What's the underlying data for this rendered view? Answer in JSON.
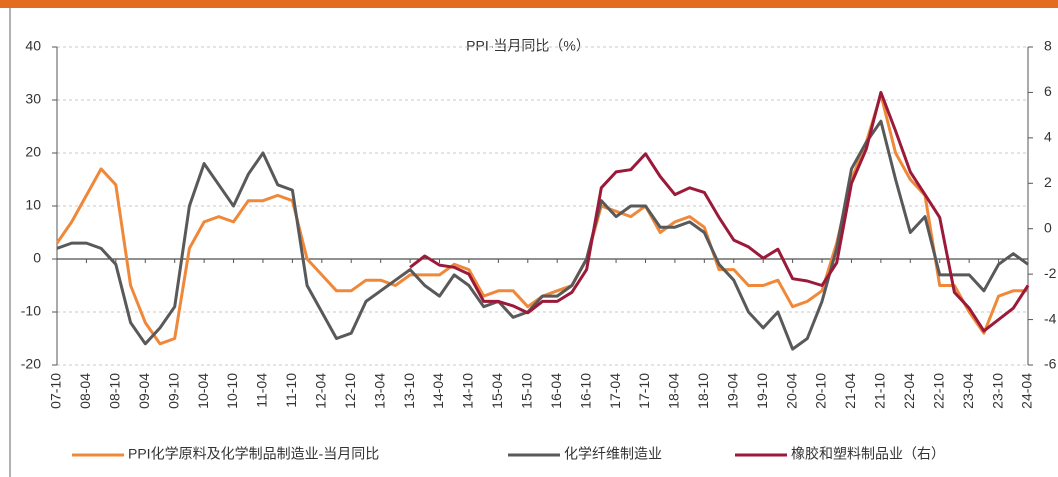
{
  "chart_data": {
    "type": "line",
    "title": "PPI-当月同比（%）",
    "categories": [
      "07-10",
      null,
      "08-04",
      null,
      "08-10",
      null,
      "09-04",
      null,
      "09-10",
      null,
      "10-04",
      null,
      "10-10",
      null,
      "11-04",
      null,
      "11-10",
      null,
      "12-04",
      null,
      "12-10",
      null,
      "13-04",
      null,
      "13-10",
      null,
      "14-04",
      null,
      "14-10",
      null,
      "15-04",
      null,
      "15-10",
      null,
      "16-04",
      null,
      "16-10",
      null,
      "17-04",
      null,
      "17-10",
      null,
      "18-04",
      null,
      "18-10",
      null,
      "19-04",
      null,
      "19-10",
      null,
      "20-04",
      null,
      "20-10",
      null,
      "21-04",
      null,
      "21-10",
      null,
      "22-04",
      null,
      "22-10",
      null,
      "23-04",
      null,
      "23-10",
      null,
      "24-04"
    ],
    "ylim": [
      -20,
      40
    ],
    "yticks": [
      -20,
      -10,
      0,
      10,
      20,
      30,
      40
    ],
    "y2lim": [
      -6,
      8
    ],
    "y2ticks": [
      -6,
      -4,
      -2,
      0,
      2,
      4,
      6,
      8
    ],
    "grid": true,
    "series": [
      {
        "name": "PPI化学原料及化学制品制造业-当月同比",
        "color": "#f0883a",
        "values": [
          3,
          7,
          12,
          17,
          14,
          -5,
          -12,
          -16,
          -15,
          2,
          7,
          8,
          7,
          11,
          11,
          12,
          11,
          0,
          -3,
          -6,
          -6,
          -4,
          -4,
          -5,
          -3,
          -3,
          -3,
          -1,
          -2,
          -7,
          -6,
          -6,
          -9,
          -7,
          -6,
          -5,
          0,
          10,
          9,
          8,
          10,
          5,
          7,
          8,
          6,
          -2,
          -2,
          -5,
          -5,
          -4,
          -9,
          -8,
          -6,
          3,
          15,
          22,
          31,
          20,
          15,
          12,
          -5,
          -5,
          -10,
          -14,
          -7,
          -6,
          -6
        ]
      },
      {
        "name": "化学纤维制造业",
        "color": "#595959",
        "values": [
          2,
          3,
          3,
          2,
          -1,
          -12,
          -16,
          -13,
          -9,
          10,
          18,
          14,
          10,
          16,
          20,
          14,
          13,
          -5,
          -10,
          -15,
          -14,
          -8,
          -6,
          -4,
          -2,
          -5,
          -7,
          -3,
          -5,
          -9,
          -8,
          -11,
          -10,
          -7,
          -7,
          -5,
          0,
          11,
          8,
          10,
          10,
          6,
          6,
          7,
          5,
          -1,
          -4,
          -10,
          -13,
          -10,
          -17,
          -15,
          -8,
          2,
          17,
          22,
          26,
          15,
          5,
          8,
          -3,
          -3,
          -3,
          -6,
          -1,
          1,
          -1
        ]
      },
      {
        "name": "橡胶和塑料制品业（右）",
        "color": "#9b1a3a",
        "axis": "y2",
        "values": [
          null,
          null,
          null,
          null,
          null,
          null,
          null,
          null,
          null,
          null,
          null,
          null,
          null,
          null,
          null,
          null,
          null,
          null,
          null,
          null,
          null,
          null,
          null,
          null,
          -1.7,
          -1.2,
          -1.6,
          -1.7,
          -2.0,
          -3.2,
          -3.2,
          -3.4,
          -3.7,
          -3.2,
          -3.2,
          -2.8,
          -1.8,
          1.8,
          2.5,
          2.6,
          3.3,
          2.3,
          1.5,
          1.8,
          1.6,
          0.5,
          -0.5,
          -0.8,
          -1.3,
          -0.9,
          -2.2,
          -2.3,
          -2.5,
          -1.5,
          2.0,
          3.5,
          6.0,
          4.3,
          2.5,
          1.5,
          0.5,
          -2.8,
          -3.5,
          -4.5,
          -4.0,
          -3.5,
          -2.5
        ]
      }
    ]
  }
}
